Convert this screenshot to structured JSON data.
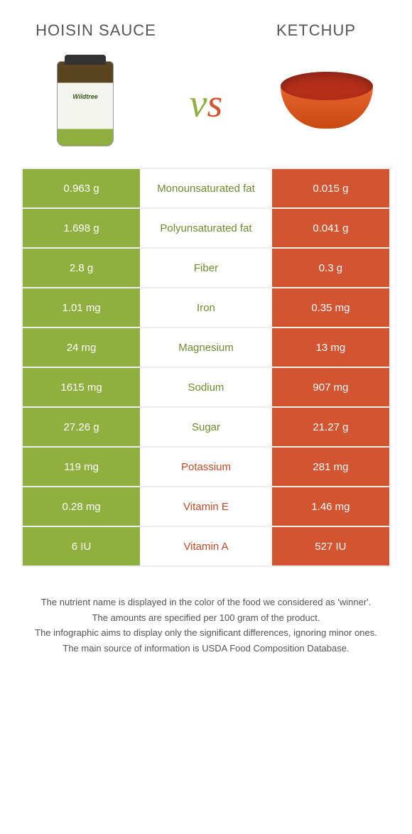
{
  "colors": {
    "green": "#8fb03e",
    "red": "#d35430",
    "green_text": "#6e8a2f",
    "red_text": "#c04a28",
    "background": "#ffffff",
    "divider": "#eeeeee"
  },
  "typography": {
    "title_fontsize": 22,
    "vs_fontsize": 56,
    "cell_fontsize": 15,
    "footer_fontsize": 13
  },
  "header": {
    "left_title": "HOISIN SAUCE",
    "right_title": "KETCHUP",
    "vs": "vs"
  },
  "products": {
    "left": {
      "name": "Hoisin Sauce",
      "brand_label": "Wildtree"
    },
    "right": {
      "name": "Ketchup"
    }
  },
  "rows": [
    {
      "nutrient": "Monounsaturated fat",
      "left": "0.963 g",
      "right": "0.015 g",
      "winner": "left"
    },
    {
      "nutrient": "Polyunsaturated fat",
      "left": "1.698 g",
      "right": "0.041 g",
      "winner": "left"
    },
    {
      "nutrient": "Fiber",
      "left": "2.8 g",
      "right": "0.3 g",
      "winner": "left"
    },
    {
      "nutrient": "Iron",
      "left": "1.01 mg",
      "right": "0.35 mg",
      "winner": "left"
    },
    {
      "nutrient": "Magnesium",
      "left": "24 mg",
      "right": "13 mg",
      "winner": "left"
    },
    {
      "nutrient": "Sodium",
      "left": "1615 mg",
      "right": "907 mg",
      "winner": "left"
    },
    {
      "nutrient": "Sugar",
      "left": "27.26 g",
      "right": "21.27 g",
      "winner": "left"
    },
    {
      "nutrient": "Potassium",
      "left": "119 mg",
      "right": "281 mg",
      "winner": "right"
    },
    {
      "nutrient": "Vitamin E",
      "left": "0.28 mg",
      "right": "1.46 mg",
      "winner": "right"
    },
    {
      "nutrient": "Vitamin A",
      "left": "6 IU",
      "right": "527 IU",
      "winner": "right"
    }
  ],
  "footer": {
    "line1": "The nutrient name is displayed in the color of the food we considered as 'winner'.",
    "line2": "The amounts are specified per 100 gram of the product.",
    "line3": "The infographic aims to display only the significant differences, ignoring minor ones.",
    "line4": "The main source of information is USDA Food Composition Database."
  }
}
